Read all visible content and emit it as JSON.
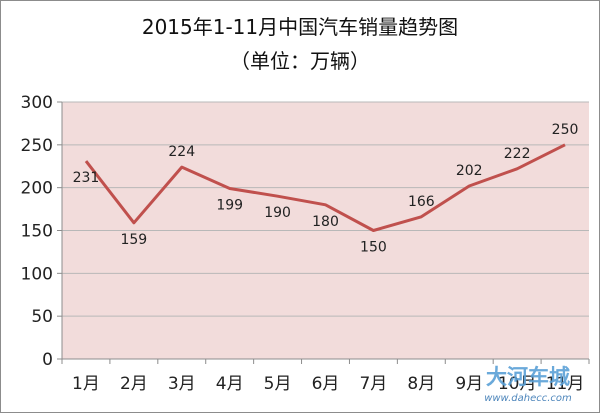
{
  "chart_data": {
    "type": "line",
    "title": "2015年1-11月中国汽车销量趋势图",
    "subtitle": "（单位：万辆）",
    "categories": [
      "1月",
      "2月",
      "3月",
      "4月",
      "5月",
      "6月",
      "7月",
      "8月",
      "9月",
      "10月",
      "11月"
    ],
    "values": [
      231,
      159,
      224,
      199,
      190,
      180,
      150,
      166,
      202,
      222,
      250
    ],
    "data_labels": [
      "231",
      "159",
      "224",
      "199",
      "190",
      "180",
      "150",
      "166",
      "202",
      "222",
      "250"
    ],
    "y_ticks": [
      "0",
      "50",
      "100",
      "150",
      "200",
      "250",
      "300"
    ],
    "ylim": [
      0,
      300
    ],
    "ystep": 50,
    "grid": true,
    "legend": "none",
    "line_color": "#c0504d",
    "plot_background": "#f2dcdb"
  },
  "watermark": {
    "text": "大河车城",
    "url": "www.dahecc.com"
  }
}
